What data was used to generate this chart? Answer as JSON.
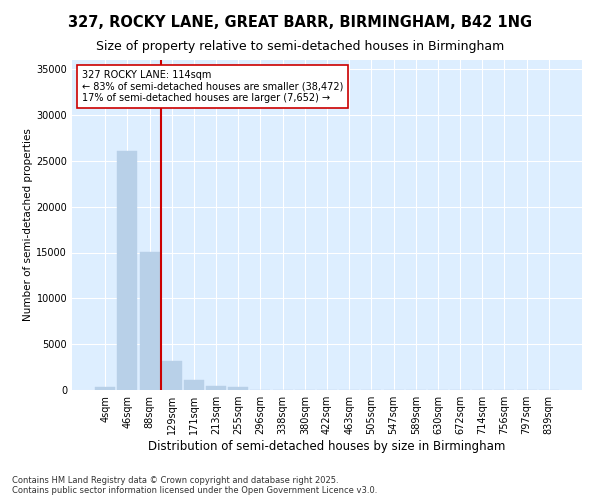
{
  "title": "327, ROCKY LANE, GREAT BARR, BIRMINGHAM, B42 1NG",
  "subtitle": "Size of property relative to semi-detached houses in Birmingham",
  "xlabel": "Distribution of semi-detached houses by size in Birmingham",
  "ylabel": "Number of semi-detached properties",
  "categories": [
    "4sqm",
    "46sqm",
    "88sqm",
    "129sqm",
    "171sqm",
    "213sqm",
    "255sqm",
    "296sqm",
    "338sqm",
    "380sqm",
    "422sqm",
    "463sqm",
    "505sqm",
    "547sqm",
    "589sqm",
    "630sqm",
    "672sqm",
    "714sqm",
    "756sqm",
    "797sqm",
    "839sqm"
  ],
  "values": [
    380,
    26100,
    15100,
    3200,
    1100,
    480,
    290,
    0,
    0,
    0,
    0,
    0,
    0,
    0,
    0,
    0,
    0,
    0,
    0,
    0,
    0
  ],
  "bar_color": "#b8d0e8",
  "bar_edge_color": "#b8d0e8",
  "vline_color": "#cc0000",
  "annotation_line1": "327 ROCKY LANE: 114sqm",
  "annotation_line2": "← 83% of semi-detached houses are smaller (38,472)",
  "annotation_line3": "17% of semi-detached houses are larger (7,652) →",
  "annotation_box_color": "#ffffff",
  "annotation_box_edge_color": "#cc0000",
  "ylim": [
    0,
    36000
  ],
  "yticks": [
    0,
    5000,
    10000,
    15000,
    20000,
    25000,
    30000,
    35000
  ],
  "fig_bg_color": "#ffffff",
  "plot_bg_color": "#ddeeff",
  "footer_text": "Contains HM Land Registry data © Crown copyright and database right 2025.\nContains public sector information licensed under the Open Government Licence v3.0.",
  "title_fontsize": 10.5,
  "subtitle_fontsize": 9,
  "xlabel_fontsize": 8.5,
  "ylabel_fontsize": 7.5,
  "tick_fontsize": 7,
  "annot_fontsize": 7,
  "footer_fontsize": 6
}
